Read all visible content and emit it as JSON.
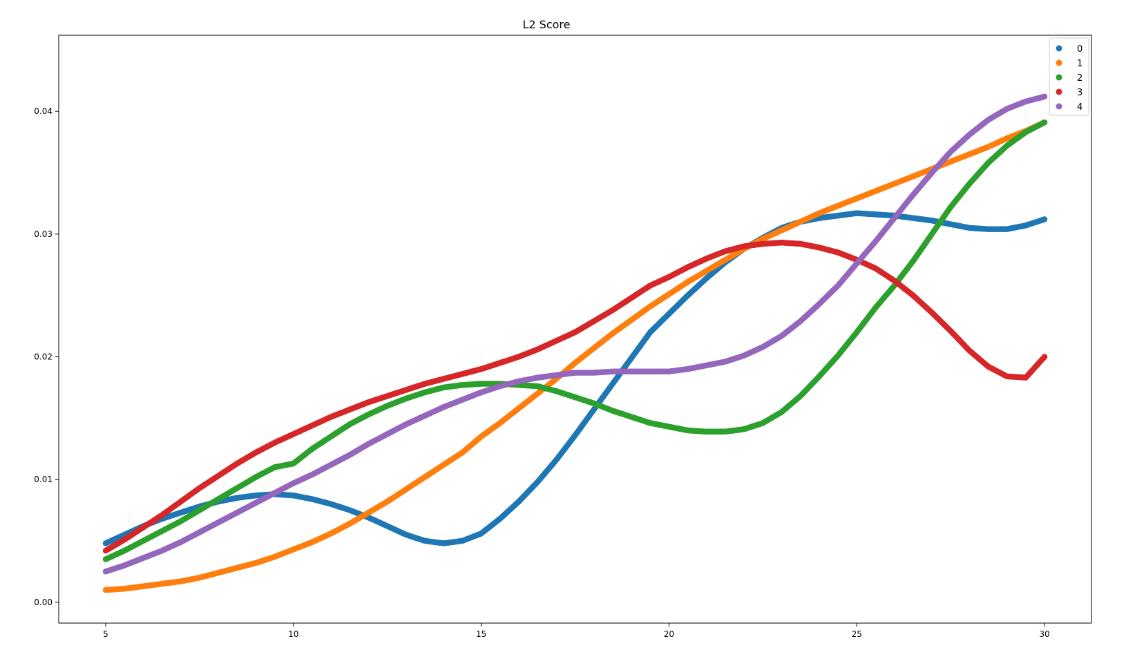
{
  "chart_data": {
    "type": "scatter",
    "title": "L2 Score",
    "xlabel": "",
    "ylabel": "",
    "xlim": [
      3.75,
      31.25
    ],
    "ylim": [
      -0.0017,
      0.0462
    ],
    "xticks": [
      5,
      10,
      15,
      20,
      25,
      30
    ],
    "xtick_labels": [
      "5",
      "10",
      "15",
      "20",
      "25",
      "30"
    ],
    "yticks": [
      0.0,
      0.01,
      0.02,
      0.03,
      0.04
    ],
    "ytick_labels": [
      "0.00",
      "0.01",
      "0.02",
      "0.03",
      "0.04"
    ],
    "grid": false,
    "legend": "top-right",
    "series": [
      {
        "name": "0",
        "color": "#1f77b4",
        "x": [
          5,
          5.5,
          6,
          6.5,
          7,
          7.5,
          8,
          8.5,
          9,
          9.5,
          10,
          10.5,
          11,
          11.5,
          12,
          12.5,
          13,
          13.5,
          14,
          14.5,
          15,
          15.5,
          16,
          16.5,
          17,
          17.5,
          18,
          18.5,
          19,
          19.5,
          20,
          20.5,
          21,
          21.5,
          22,
          22.5,
          23,
          23.5,
          24,
          24.5,
          25,
          25.5,
          26,
          26.5,
          27,
          27.5,
          28,
          28.5,
          29,
          29.5,
          30
        ],
        "y": [
          0.0048,
          0.0055,
          0.0062,
          0.0068,
          0.0073,
          0.0078,
          0.0082,
          0.0085,
          0.0087,
          0.0088,
          0.0087,
          0.0084,
          0.008,
          0.0075,
          0.0069,
          0.0062,
          0.0055,
          0.005,
          0.0048,
          0.005,
          0.0056,
          0.0068,
          0.0082,
          0.0098,
          0.0116,
          0.0136,
          0.0157,
          0.0178,
          0.0199,
          0.022,
          0.0235,
          0.025,
          0.0264,
          0.0277,
          0.0288,
          0.0297,
          0.0305,
          0.031,
          0.0313,
          0.0315,
          0.0317,
          0.0316,
          0.0315,
          0.0313,
          0.0311,
          0.0308,
          0.0305,
          0.0304,
          0.0304,
          0.0307,
          0.0312
        ]
      },
      {
        "name": "1",
        "color": "#ff7f0e",
        "x": [
          5,
          5.5,
          6,
          6.5,
          7,
          7.5,
          8,
          8.5,
          9,
          9.5,
          10,
          10.5,
          11,
          11.5,
          12,
          12.5,
          13,
          13.5,
          14,
          14.5,
          15,
          15.5,
          16,
          16.5,
          17,
          17.5,
          18,
          18.5,
          19,
          19.5,
          20,
          20.5,
          21,
          21.5,
          22,
          22.5,
          23,
          23.5,
          24,
          24.5,
          25,
          25.5,
          26,
          26.5,
          27,
          27.5,
          28,
          28.5,
          29,
          29.5,
          30
        ],
        "y": [
          0.001,
          0.0011,
          0.0013,
          0.0015,
          0.0017,
          0.002,
          0.0024,
          0.0028,
          0.0032,
          0.0037,
          0.0043,
          0.0049,
          0.0056,
          0.0064,
          0.0073,
          0.0082,
          0.0092,
          0.0102,
          0.0112,
          0.0122,
          0.0135,
          0.0146,
          0.0158,
          0.017,
          0.0182,
          0.0195,
          0.0207,
          0.0219,
          0.023,
          0.0241,
          0.0251,
          0.0261,
          0.027,
          0.0279,
          0.0288,
          0.0296,
          0.0303,
          0.031,
          0.0317,
          0.0323,
          0.0329,
          0.0335,
          0.0341,
          0.0347,
          0.0353,
          0.0359,
          0.0365,
          0.0371,
          0.0378,
          0.0384,
          0.0391
        ]
      },
      {
        "name": "2",
        "color": "#2ca02c",
        "x": [
          5,
          5.5,
          6,
          6.5,
          7,
          7.5,
          8,
          8.5,
          9,
          9.5,
          10,
          10.5,
          11,
          11.5,
          12,
          12.5,
          13,
          13.5,
          14,
          14.5,
          15,
          15.5,
          16,
          16.5,
          17,
          17.5,
          18,
          18.5,
          19,
          19.5,
          20,
          20.5,
          21,
          21.5,
          22,
          22.5,
          23,
          23.5,
          24,
          24.5,
          25,
          25.5,
          26,
          26.5,
          27,
          27.5,
          28,
          28.5,
          29,
          29.5,
          30
        ],
        "y": [
          0.0035,
          0.0042,
          0.005,
          0.0058,
          0.0066,
          0.0075,
          0.0084,
          0.0093,
          0.0102,
          0.011,
          0.0113,
          0.0125,
          0.0135,
          0.0145,
          0.0153,
          0.016,
          0.0166,
          0.0171,
          0.0175,
          0.0177,
          0.0178,
          0.0178,
          0.0177,
          0.0176,
          0.0172,
          0.0167,
          0.0162,
          0.0156,
          0.0151,
          0.0146,
          0.0143,
          0.014,
          0.0139,
          0.0139,
          0.0141,
          0.0146,
          0.0155,
          0.0168,
          0.0184,
          0.0201,
          0.022,
          0.024,
          0.0258,
          0.0278,
          0.03,
          0.0322,
          0.0341,
          0.0358,
          0.0372,
          0.0383,
          0.0391
        ]
      },
      {
        "name": "3",
        "color": "#d62728",
        "x": [
          5,
          5.5,
          6,
          6.5,
          7,
          7.5,
          8,
          8.5,
          9,
          9.5,
          10,
          10.5,
          11,
          11.5,
          12,
          12.5,
          13,
          13.5,
          14,
          14.5,
          15,
          15.5,
          16,
          16.5,
          17,
          17.5,
          18,
          18.5,
          19,
          19.5,
          20,
          20.5,
          21,
          21.5,
          22,
          22.5,
          23,
          23.5,
          24,
          24.5,
          25,
          25.5,
          26,
          26.5,
          27,
          27.5,
          28,
          28.5,
          29,
          29.5,
          30
        ],
        "y": [
          0.0042,
          0.0051,
          0.0061,
          0.0071,
          0.0082,
          0.0093,
          0.0103,
          0.0113,
          0.0122,
          0.013,
          0.0137,
          0.0144,
          0.0151,
          0.0157,
          0.0163,
          0.0168,
          0.0173,
          0.0178,
          0.0182,
          0.0186,
          0.019,
          0.0195,
          0.02,
          0.0206,
          0.0213,
          0.022,
          0.0229,
          0.0238,
          0.0248,
          0.0258,
          0.0265,
          0.0273,
          0.028,
          0.0286,
          0.029,
          0.0292,
          0.0293,
          0.0292,
          0.0289,
          0.0285,
          0.0279,
          0.0272,
          0.0262,
          0.025,
          0.0236,
          0.0221,
          0.0205,
          0.0192,
          0.0184,
          0.0183,
          0.02
        ]
      },
      {
        "name": "4",
        "color": "#9467bd",
        "x": [
          5,
          5.5,
          6,
          6.5,
          7,
          7.5,
          8,
          8.5,
          9,
          9.5,
          10,
          10.5,
          11,
          11.5,
          12,
          12.5,
          13,
          13.5,
          14,
          14.5,
          15,
          15.5,
          16,
          16.5,
          17,
          17.5,
          18,
          18.5,
          19,
          19.5,
          20,
          20.5,
          21,
          21.5,
          22,
          22.5,
          23,
          23.5,
          24,
          24.5,
          25,
          25.5,
          26,
          26.5,
          27,
          27.5,
          28,
          28.5,
          29,
          29.5,
          30
        ],
        "y": [
          0.0025,
          0.003,
          0.0036,
          0.0042,
          0.0049,
          0.0057,
          0.0065,
          0.0073,
          0.0081,
          0.0089,
          0.0097,
          0.0104,
          0.0112,
          0.012,
          0.0129,
          0.0137,
          0.0145,
          0.0152,
          0.0159,
          0.0165,
          0.0171,
          0.0176,
          0.018,
          0.0183,
          0.0185,
          0.0187,
          0.0187,
          0.0188,
          0.0188,
          0.0188,
          0.0188,
          0.019,
          0.0193,
          0.0196,
          0.0201,
          0.0208,
          0.0217,
          0.0229,
          0.0243,
          0.0258,
          0.0276,
          0.0294,
          0.0313,
          0.0332,
          0.035,
          0.0367,
          0.0381,
          0.0393,
          0.0402,
          0.0408,
          0.0412
        ]
      }
    ]
  }
}
